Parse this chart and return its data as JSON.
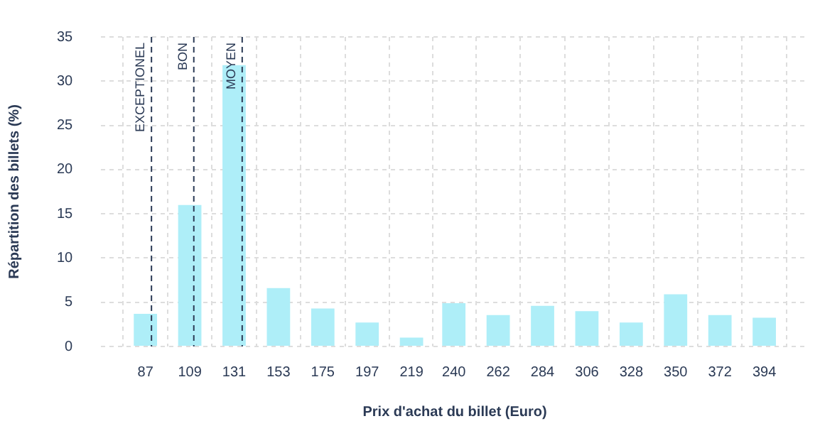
{
  "chart_data": {
    "type": "bar",
    "xlabel": "Prix d'achat du billet (Euro)",
    "ylabel": "Répartition des billets (%)",
    "x": [
      87,
      109,
      131,
      153,
      175,
      197,
      219,
      240,
      262,
      284,
      306,
      328,
      350,
      372,
      394
    ],
    "values": [
      3.7,
      16.0,
      31.8,
      6.6,
      4.3,
      2.7,
      1.0,
      4.9,
      3.55,
      4.6,
      4.0,
      2.7,
      5.9,
      3.55,
      3.25
    ],
    "color": "#aeeef8",
    "xlim": [
      65,
      416
    ],
    "xticks": [
      87,
      109,
      131,
      153,
      175,
      197,
      219,
      240,
      262,
      284,
      306,
      328,
      350,
      372,
      394
    ],
    "ylim": [
      0,
      35
    ],
    "yticks": [
      0,
      5,
      10,
      15,
      20,
      25,
      30,
      35
    ],
    "grid": true,
    "legend": false,
    "ref_lines": [
      {
        "axis": "x",
        "value": 90,
        "label": "EXCEPTIONEL",
        "color": "#2b3a55",
        "line_style": "dashed"
      },
      {
        "axis": "x",
        "value": 111,
        "label": "BON",
        "color": "#2b3a55",
        "line_style": "dashed"
      },
      {
        "axis": "x",
        "value": 135,
        "label": "MOYEN",
        "color": "#2b3a55",
        "line_style": "dashed"
      }
    ]
  }
}
